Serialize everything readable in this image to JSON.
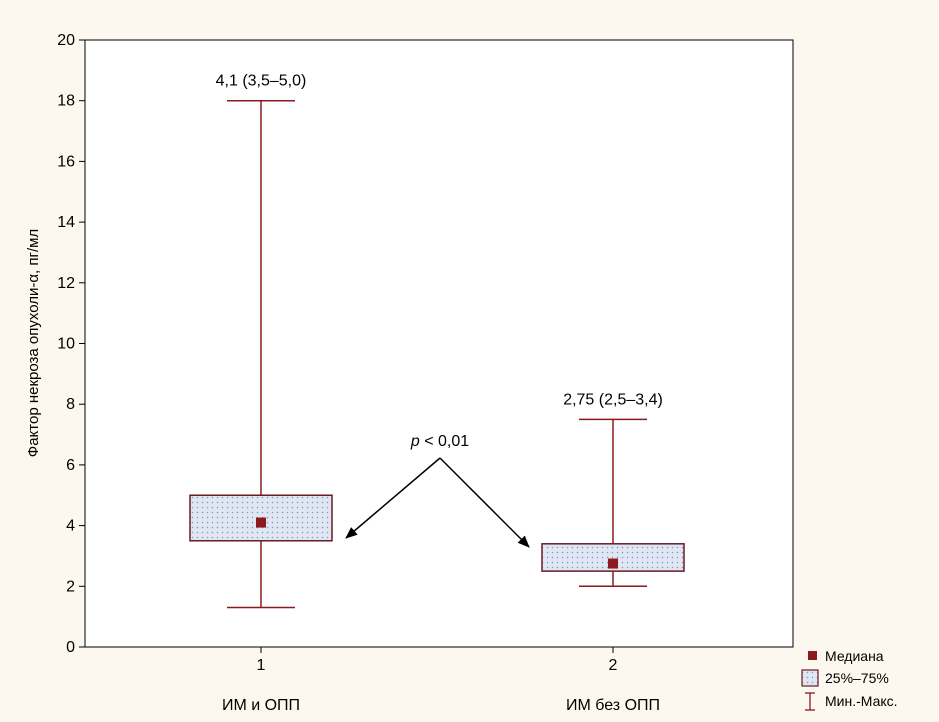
{
  "chart_data": {
    "type": "box",
    "title": "",
    "xlabel": "",
    "ylabel": "Фактор некроза опухоли-α, пг/мл",
    "ylim": [
      0,
      20
    ],
    "yticks": [
      0,
      2,
      4,
      6,
      8,
      10,
      12,
      14,
      16,
      18,
      20
    ],
    "categories": [
      "1",
      "2"
    ],
    "category_labels": [
      "ИМ и ОПП",
      "ИМ без ОПП"
    ],
    "boxes": [
      {
        "category": "1",
        "group": "ИМ и ОПП",
        "median": 4.1,
        "q1": 3.5,
        "q3": 5.0,
        "min": 1.3,
        "max": 18.0,
        "annotation": "4,1 (3,5–5,0)"
      },
      {
        "category": "2",
        "group": "ИМ без ОПП",
        "median": 2.75,
        "q1": 2.5,
        "q3": 3.4,
        "min": 2.0,
        "max": 7.5,
        "annotation": "2,75 (2,5–3,4)"
      }
    ],
    "comparison": {
      "p_symbol": "p",
      "p_text": " < 0,01"
    },
    "legend": {
      "position": "bottom-right",
      "items": [
        {
          "label": "Медиана",
          "symbol": "square"
        },
        {
          "label": "25%–75%",
          "symbol": "box"
        },
        {
          "label": "Мин.-Макс.",
          "symbol": "whisker"
        }
      ]
    },
    "colors": {
      "box_fill": "#dfe7f4",
      "box_stroke": "#6b1a22",
      "median": "#8b1a1f",
      "whisker": "#8b1a1f",
      "background": "#fdf8ef"
    },
    "grid": false
  }
}
